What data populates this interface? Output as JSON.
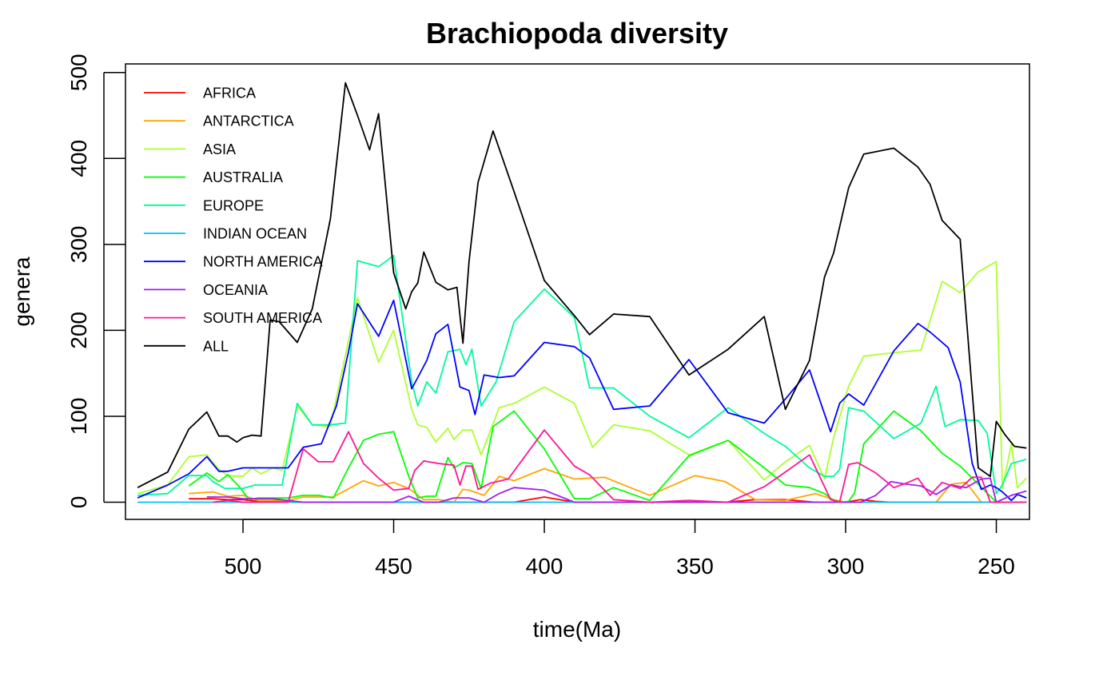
{
  "chart_data": {
    "type": "line",
    "title": "Brachiopoda diversity",
    "xlabel": "time(Ma)",
    "ylabel": "genera",
    "xlim": [
      539,
      239
    ],
    "ylim": [
      -20,
      510
    ],
    "x_reversed": true,
    "x_ticks": [
      500,
      450,
      400,
      350,
      300,
      250
    ],
    "y_ticks": [
      0,
      100,
      200,
      300,
      400,
      500
    ],
    "grid": false,
    "legend_position": "top-left",
    "series": [
      {
        "name": "AFRICA",
        "color": "#FF0000",
        "x": [
          518,
          510,
          505,
          500,
          495,
          490,
          485,
          480,
          475,
          470,
          465,
          460,
          455,
          450,
          445,
          440,
          435,
          430,
          425,
          420,
          410,
          400,
          390,
          380,
          370,
          360,
          350,
          340,
          330,
          320,
          310,
          305,
          300,
          295,
          290,
          285,
          280,
          270,
          260,
          255,
          250,
          245,
          240
        ],
        "y": [
          4,
          4,
          3,
          3,
          1,
          1,
          1,
          0,
          0,
          0,
          0,
          0,
          0,
          0,
          0,
          0,
          0,
          0,
          0,
          0,
          0,
          6,
          0,
          0,
          0,
          0,
          0,
          0,
          3,
          3,
          0,
          0,
          0,
          3,
          1,
          0,
          0,
          0,
          0,
          0,
          0,
          0,
          0
        ]
      },
      {
        "name": "ANTARCTICA",
        "color": "#FFA500",
        "x": [
          518,
          510,
          505,
          500,
          495,
          490,
          485,
          480,
          470,
          460,
          455,
          450,
          445,
          440,
          435,
          430,
          427,
          425,
          420,
          415,
          410,
          400,
          390,
          380,
          365,
          350,
          340,
          330,
          320,
          310,
          305,
          300,
          295,
          290,
          285,
          280,
          270,
          265,
          260,
          255,
          250,
          245,
          240
        ],
        "y": [
          10,
          12,
          7,
          8,
          2,
          2,
          2,
          6,
          6,
          25,
          19,
          23,
          16,
          3,
          3,
          0,
          15,
          14,
          8,
          30,
          25,
          39,
          27,
          29,
          8,
          31,
          24,
          3,
          2,
          10,
          4,
          0,
          0,
          0,
          0,
          0,
          0,
          21,
          23,
          0,
          0,
          0,
          0
        ]
      },
      {
        "name": "ASIA",
        "color": "#ADFF2F",
        "x": [
          535,
          525,
          518,
          512,
          508,
          505,
          500,
          497,
          494,
          490,
          487,
          482,
          477,
          471,
          462,
          455,
          450,
          444,
          442,
          439,
          436,
          432,
          430,
          427,
          424,
          421,
          415,
          410,
          400,
          390,
          384,
          377,
          365,
          352,
          339,
          327,
          320,
          312,
          307,
          304,
          299,
          294,
          284,
          275,
          268,
          262,
          256,
          250,
          248,
          245,
          243,
          240
        ],
        "y": [
          10,
          20,
          53,
          55,
          38,
          31,
          30,
          40,
          33,
          40,
          37,
          112,
          90,
          88,
          238,
          163,
          200,
          108,
          90,
          87,
          70,
          86,
          73,
          84,
          84,
          55,
          110,
          115,
          134,
          115,
          64,
          90,
          83,
          55,
          72,
          26,
          47,
          66,
          27,
          75,
          135,
          170,
          174,
          177,
          257,
          244,
          268,
          280,
          16,
          68,
          17,
          28
        ]
      },
      {
        "name": "AUSTRALIA",
        "color": "#00FF00",
        "x": [
          518,
          512,
          508,
          505,
          501,
          498,
          495,
          490,
          485,
          480,
          475,
          470,
          465,
          460,
          455,
          450,
          445,
          442,
          439,
          436,
          432,
          430,
          427,
          424,
          421,
          417,
          410,
          400,
          390,
          385,
          377,
          365,
          352,
          339,
          327,
          320,
          312,
          307,
          304,
          301,
          299,
          297,
          294,
          284,
          275,
          268,
          262,
          258,
          250,
          245,
          240
        ],
        "y": [
          19,
          34,
          24,
          32,
          17,
          3,
          5,
          5,
          5,
          8,
          8,
          5,
          40,
          72,
          79,
          82,
          30,
          5,
          7,
          7,
          52,
          40,
          46,
          45,
          16,
          88,
          106,
          62,
          4,
          4,
          17,
          2,
          54,
          72,
          40,
          20,
          17,
          10,
          2,
          0,
          1,
          11,
          68,
          106,
          83,
          57,
          42,
          28,
          0,
          0,
          0
        ]
      },
      {
        "name": "EUROPE",
        "color": "#00FA9A",
        "x": [
          535,
          525,
          518,
          512,
          510,
          506,
          500,
          496,
          490,
          487,
          482,
          477,
          471,
          466,
          462,
          455,
          450,
          444,
          442,
          439,
          436,
          432,
          428,
          426,
          424,
          421,
          416,
          410,
          400,
          390,
          385,
          377,
          365,
          352,
          339,
          327,
          320,
          312,
          307,
          304,
          302,
          299,
          294,
          284,
          275,
          270,
          267,
          262,
          256,
          253,
          250,
          248,
          245,
          240
        ],
        "y": [
          8,
          10,
          31,
          31,
          24,
          16,
          16,
          20,
          20,
          20,
          115,
          90,
          90,
          92,
          281,
          274,
          287,
          140,
          112,
          140,
          127,
          175,
          178,
          160,
          178,
          112,
          140,
          210,
          248,
          215,
          133,
          133,
          100,
          75,
          110,
          80,
          65,
          40,
          30,
          30,
          38,
          110,
          106,
          74,
          92,
          135,
          88,
          96,
          95,
          80,
          10,
          20,
          45,
          50
        ]
      },
      {
        "name": "INDIAN OCEAN",
        "color": "#00BFFF",
        "x": [
          535,
          500,
          470,
          450,
          400,
          350,
          300,
          250,
          240
        ],
        "y": [
          0,
          0,
          0,
          0,
          0,
          0,
          0,
          0,
          0
        ]
      },
      {
        "name": "NORTH AMERICA",
        "color": "#0000FF",
        "x": [
          535,
          525,
          518,
          512,
          508,
          505,
          500,
          495,
          490,
          485,
          480,
          474,
          469,
          465,
          462,
          455,
          450,
          444,
          442,
          439,
          436,
          432,
          428,
          425,
          423,
          420,
          415,
          410,
          400,
          390,
          385,
          377,
          365,
          352,
          339,
          327,
          320,
          312,
          305,
          302,
          299,
          294,
          284,
          276,
          272,
          266,
          262,
          258,
          255,
          252,
          250,
          248,
          245,
          243,
          240
        ],
        "y": [
          5,
          20,
          33,
          53,
          36,
          36,
          40,
          40,
          40,
          40,
          64,
          68,
          112,
          175,
          231,
          193,
          235,
          132,
          145,
          165,
          196,
          207,
          134,
          130,
          102,
          148,
          145,
          147,
          186,
          181,
          168,
          108,
          112,
          166,
          104,
          92,
          120,
          154,
          82,
          115,
          126,
          113,
          176,
          208,
          198,
          180,
          140,
          45,
          15,
          20,
          17,
          12,
          2,
          9,
          5
        ]
      },
      {
        "name": "OCEANIA",
        "color": "#A020F0",
        "x": [
          512,
          505,
          500,
          490,
          480,
          470,
          460,
          450,
          445,
          440,
          435,
          430,
          425,
          420,
          415,
          410,
          400,
          390,
          380,
          365,
          350,
          340,
          330,
          320,
          310,
          305,
          300,
          295,
          290,
          285,
          280,
          275,
          270,
          265,
          260,
          255,
          252,
          250,
          245,
          240
        ],
        "y": [
          6,
          6,
          4,
          4,
          0,
          0,
          0,
          0,
          7,
          0,
          0,
          5,
          5,
          0,
          10,
          17,
          14,
          0,
          0,
          0,
          0,
          0,
          0,
          0,
          0,
          0,
          0,
          0,
          8,
          24,
          21,
          19,
          9,
          20,
          17,
          27,
          28,
          0,
          8,
          13
        ]
      },
      {
        "name": "SOUTH AMERICA",
        "color": "#FF1493",
        "x": [
          510,
          505,
          500,
          495,
          490,
          485,
          480,
          475,
          470,
          465,
          460,
          455,
          450,
          445,
          443,
          440,
          435,
          430,
          428,
          426,
          424,
          422,
          418,
          412,
          400,
          390,
          385,
          377,
          365,
          352,
          339,
          327,
          320,
          312,
          305,
          302,
          299,
          296,
          290,
          284,
          280,
          276,
          272,
          268,
          262,
          258,
          255,
          252,
          250,
          240
        ],
        "y": [
          0,
          2,
          0,
          0,
          0,
          0,
          62,
          47,
          47,
          82,
          45,
          28,
          14,
          16,
          37,
          48,
          45,
          43,
          20,
          42,
          42,
          15,
          22,
          27,
          84,
          42,
          32,
          3,
          0,
          2,
          0,
          18,
          35,
          55,
          3,
          0,
          44,
          46,
          34,
          17,
          22,
          28,
          8,
          23,
          16,
          29,
          29,
          0,
          0,
          0
        ]
      },
      {
        "name": "ALL",
        "color": "#000000",
        "x": [
          535,
          525,
          518,
          512,
          508,
          505,
          502,
          500,
          497,
          494,
          491,
          488,
          482,
          477,
          471,
          466,
          462,
          458,
          455,
          450,
          446,
          444,
          442,
          440,
          436,
          432,
          429,
          427,
          425,
          422,
          417,
          410,
          400,
          390,
          385,
          377,
          365,
          352,
          339,
          327,
          320,
          312,
          307,
          304,
          299,
          294,
          284,
          276,
          272,
          268,
          262,
          256,
          252,
          250,
          247,
          244,
          240
        ],
        "y": [
          17,
          35,
          85,
          105,
          77,
          77,
          70,
          75,
          78,
          77,
          212,
          210,
          186,
          225,
          330,
          488,
          450,
          410,
          452,
          267,
          225,
          245,
          255,
          291,
          256,
          247,
          250,
          185,
          280,
          372,
          432,
          361,
          258,
          217,
          195,
          219,
          216,
          148,
          178,
          216,
          108,
          165,
          262,
          290,
          366,
          405,
          412,
          390,
          370,
          328,
          306,
          40,
          30,
          94,
          78,
          65,
          63
        ]
      }
    ]
  }
}
